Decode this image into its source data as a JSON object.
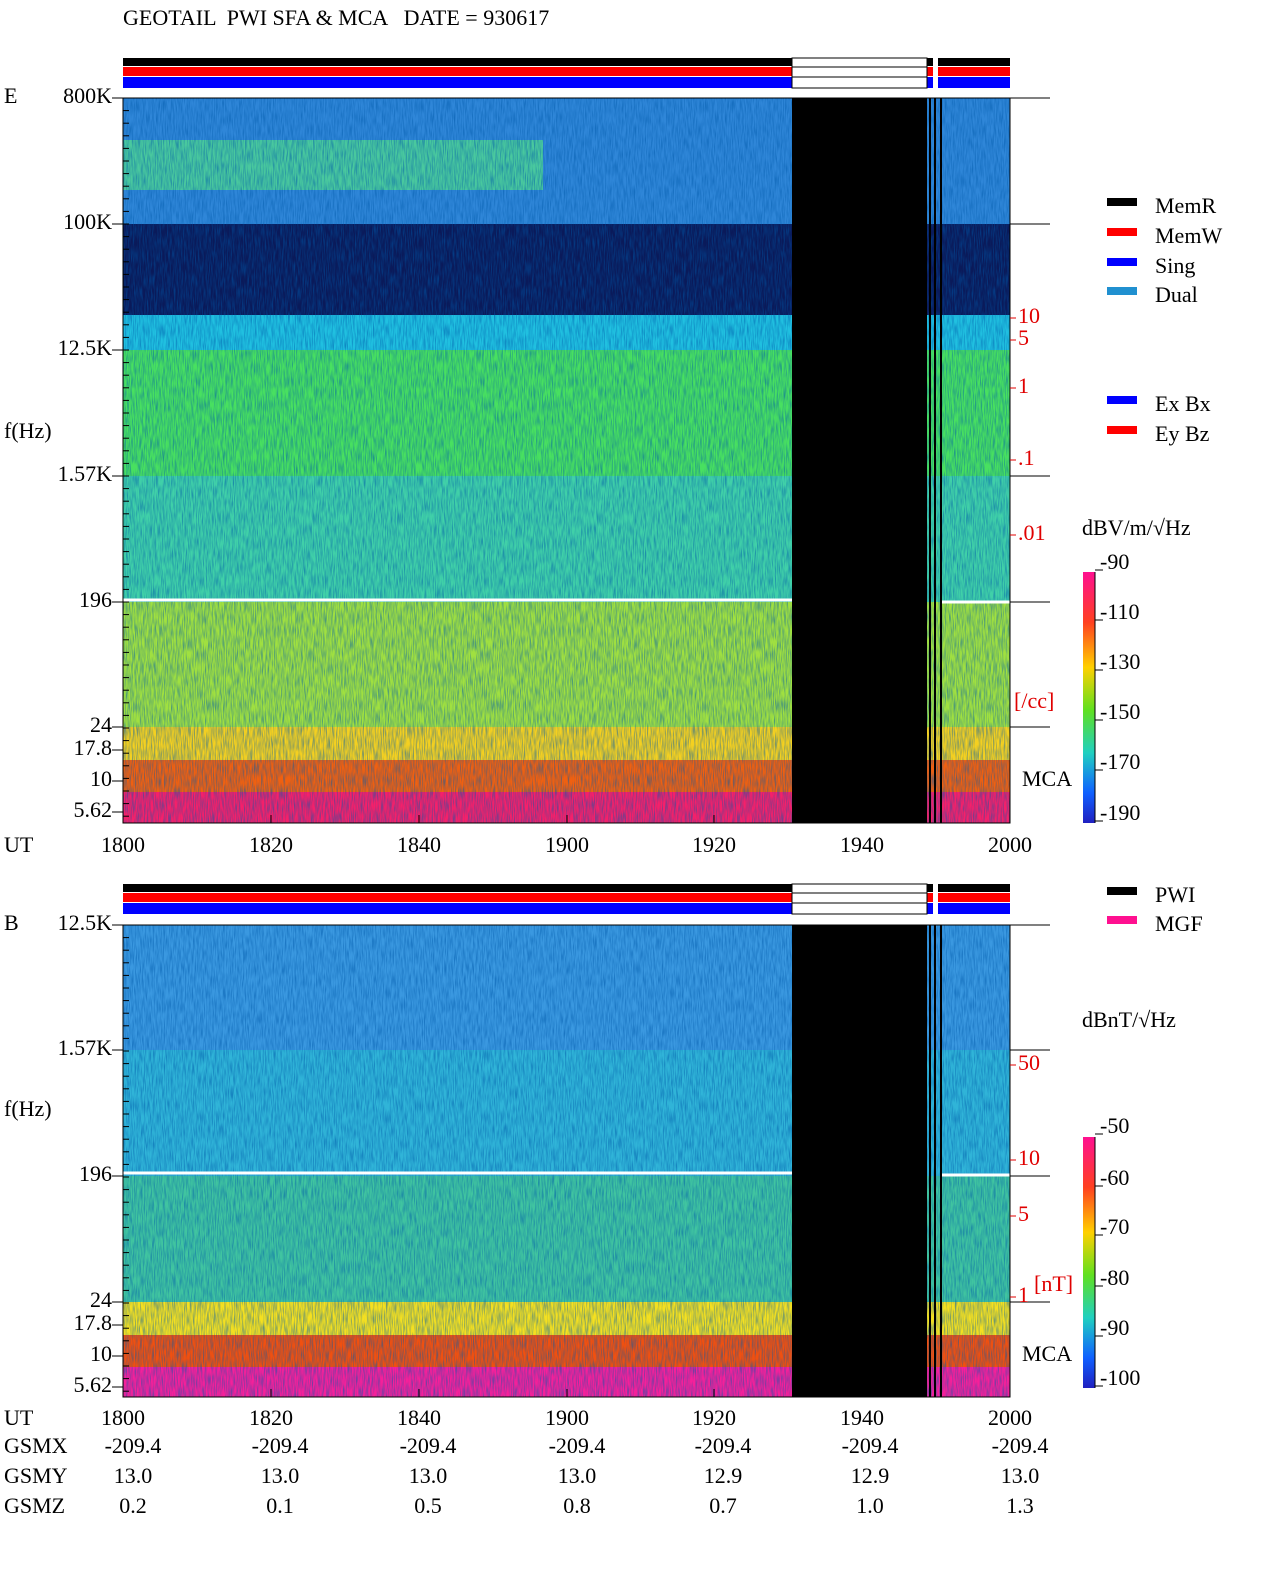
{
  "header": {
    "title": "GEOTAIL  PWI SFA & MCA   DATE = 930617"
  },
  "panels": [
    {
      "label": "E",
      "y_axis_label": "f(Hz)",
      "freq_ticks": [
        "800K",
        "100K",
        "12.5K",
        "1.57K",
        "196",
        "24",
        "17.8",
        "10",
        "5.62"
      ],
      "right_ticks": [
        "10",
        "5",
        "1",
        ".1",
        ".01"
      ],
      "right_unit": "[/cc]",
      "mca": "MCA",
      "x_axis_label": "UT",
      "x_ticks": [
        "1800",
        "1820",
        "1840",
        "1900",
        "1920",
        "1940",
        "2000"
      ],
      "unit": "dBV/m/√Hz",
      "colorbar_ticks": [
        "-90",
        "-110",
        "-130",
        "-150",
        "-170",
        "-190"
      ]
    },
    {
      "label": "B",
      "y_axis_label": "f(Hz)",
      "freq_ticks": [
        "12.5K",
        "1.57K",
        "196",
        "24",
        "17.8",
        "10",
        "5.62"
      ],
      "right_ticks": [
        "50",
        "10",
        "5",
        "1"
      ],
      "right_unit": "[nT]",
      "mca": "MCA",
      "x_axis_label": "UT",
      "x_ticks": [
        "1800",
        "1820",
        "1840",
        "1900",
        "1920",
        "1940",
        "2000"
      ],
      "unit": "dBnT/√Hz",
      "colorbar_ticks": [
        "-50",
        "-60",
        "-70",
        "-80",
        "-90",
        "-100"
      ]
    }
  ],
  "legend": {
    "status": [
      "MemR",
      "MemW",
      "Sing",
      "Dual"
    ],
    "components": [
      "Ex Bx",
      "Ey Bz"
    ],
    "sources": [
      "PWI",
      "MGF"
    ]
  },
  "orbit": {
    "rows": [
      {
        "label": "GSMX",
        "values": [
          "-209.4",
          "-209.4",
          "-209.4",
          "-209.4",
          "-209.4",
          "-209.4",
          "-209.4"
        ]
      },
      {
        "label": "GSMY",
        "values": [
          "13.0",
          "13.0",
          "13.0",
          "13.0",
          "12.9",
          "12.9",
          "13.0"
        ]
      },
      {
        "label": "GSMZ",
        "values": [
          "0.2",
          "0.1",
          "0.5",
          "0.8",
          "0.7",
          "1.0",
          "1.3"
        ]
      }
    ]
  }
}
